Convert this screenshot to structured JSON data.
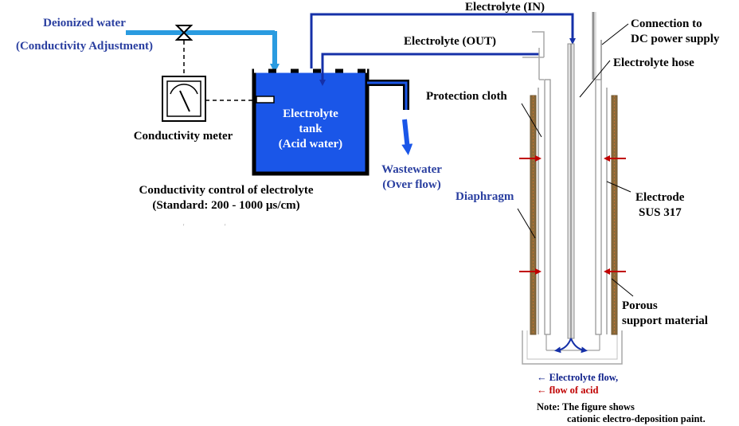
{
  "labels": {
    "deionized_line1": "Deionized water",
    "deionized_line2": "(Conductivity Adjustment)",
    "electrolyte_in": "Electrolyte (IN)",
    "electrolyte_out": "Electrolyte (OUT)",
    "connection_line1": "Connection to",
    "connection_line2": "DC power supply",
    "electrolyte_hose": "Electrolyte hose",
    "protection_cloth": "Protection cloth",
    "conductivity_meter": "Conductivity meter",
    "tank_line1": "Electrolyte",
    "tank_line2": "tank",
    "tank_line3": "(Acid water)",
    "wastewater_line1": "Wastewater",
    "wastewater_line2": "(Over flow)",
    "control_line1": "Conductivity control of electrolyte",
    "control_line2": "(Standard: 200 - 1000 µs/cm)",
    "diaphragm": "Diaphragm",
    "electrode_line1": "Electrode",
    "electrode_line2": "SUS 317",
    "porous_line1": "Porous",
    "porous_line2": "support material",
    "legend_flow": "← Electrolyte flow,",
    "legend_acid": "← flow of acid",
    "note_line1": "Note: The figure shows",
    "note_line2": "cationic electro-deposition paint."
  },
  "colors": {
    "tank_fill": "#1a56e8",
    "deionized_pipe": "#2a9be0",
    "electrolyte_pipe": "#1530a8",
    "acid_arrow": "#c00000",
    "label_blue": "#2a3fa0",
    "label_dark_blue": "#0d1f8a"
  }
}
